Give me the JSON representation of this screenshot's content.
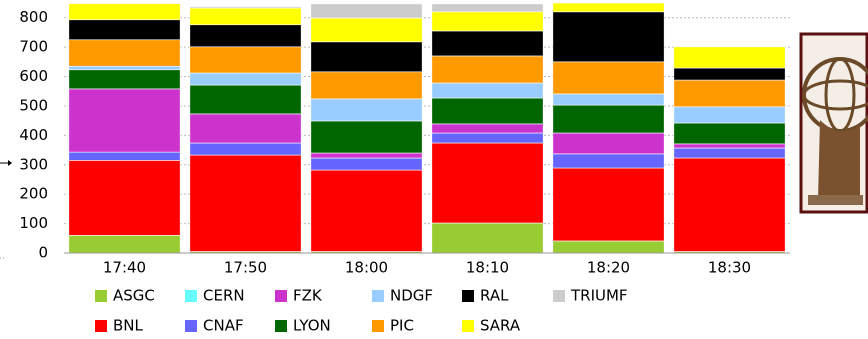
{
  "chart_data": {
    "type": "bar",
    "stacked": true,
    "categories": [
      "17:40",
      "17:50",
      "18:00",
      "18:10",
      "18:20",
      "18:30"
    ],
    "series": [
      {
        "name": "ASGC",
        "color": "#99cc33",
        "values": [
          60,
          5,
          5,
          102,
          41,
          5
        ]
      },
      {
        "name": "BNL",
        "color": "#ff0000",
        "values": [
          255,
          328,
          277,
          272,
          248,
          318
        ]
      },
      {
        "name": "CERN",
        "color": "#66ffff",
        "values": [
          0,
          0,
          0,
          0,
          0,
          0
        ]
      },
      {
        "name": "CNAF",
        "color": "#6666ff",
        "values": [
          28,
          41,
          41,
          34,
          48,
          34
        ]
      },
      {
        "name": "FZK",
        "color": "#cc33cc",
        "values": [
          215,
          99,
          17,
          31,
          71,
          14
        ]
      },
      {
        "name": "LYON",
        "color": "#006600",
        "values": [
          65,
          98,
          109,
          88,
          95,
          71
        ]
      },
      {
        "name": "NDGF",
        "color": "#99ccff",
        "values": [
          12,
          41,
          75,
          51,
          38,
          55
        ]
      },
      {
        "name": "PIC",
        "color": "#ff9900",
        "values": [
          90,
          89,
          92,
          92,
          109,
          91
        ]
      },
      {
        "name": "RAL",
        "color": "#000000",
        "values": [
          68,
          75,
          102,
          85,
          170,
          41
        ]
      },
      {
        "name": "SARA",
        "color": "#ffff00",
        "values": [
          55,
          57,
          81,
          65,
          30,
          72
        ]
      },
      {
        "name": "TRIUMF",
        "color": "#cccccc",
        "values": [
          0,
          5,
          48,
          27,
          0,
          0
        ]
      }
    ],
    "ylim": [
      0,
      850
    ],
    "yticks": [
      0,
      100,
      200,
      300,
      400,
      500,
      600,
      700,
      800
    ],
    "grid": true
  }
}
